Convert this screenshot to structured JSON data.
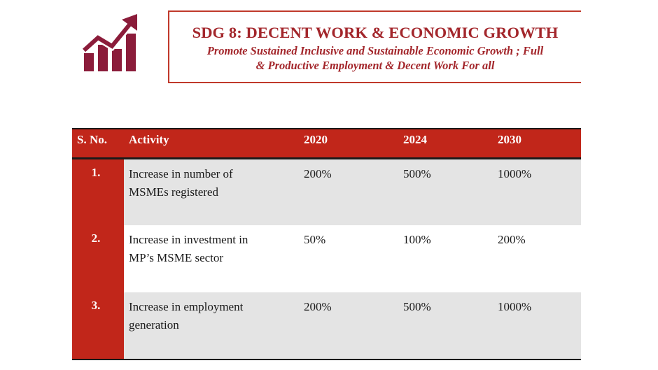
{
  "header": {
    "title": "SDG 8: DECENT WORK & ECONOMIC GROWTH",
    "subtitle_line1": "Promote Sustained Inclusive and Sustainable Economic Growth ; Full",
    "subtitle_line2": "& Productive Employment & Decent Work For all",
    "logo_icon": "growth-chart-icon",
    "accent_color": "#a3262b"
  },
  "table": {
    "header_color": "#c1261a",
    "columns": [
      "S. No.",
      "Activity",
      "2020",
      "2024",
      "2030"
    ],
    "rows": [
      {
        "sno": "1.",
        "activity_line1": "Increase in number of",
        "activity_line2": "MSMEs registered",
        "y2020": "200%",
        "y2024": "500%",
        "y2030": "1000%"
      },
      {
        "sno": "2.",
        "activity_line1": "Increase in investment in",
        "activity_line2": "MP’s MSME sector",
        "y2020": "50%",
        "y2024": "100%",
        "y2030": "200%"
      },
      {
        "sno": "3.",
        "activity_line1": "Increase in employment",
        "activity_line2": "generation",
        "y2020": "200%",
        "y2024": "500%",
        "y2030": "1000%"
      }
    ]
  }
}
